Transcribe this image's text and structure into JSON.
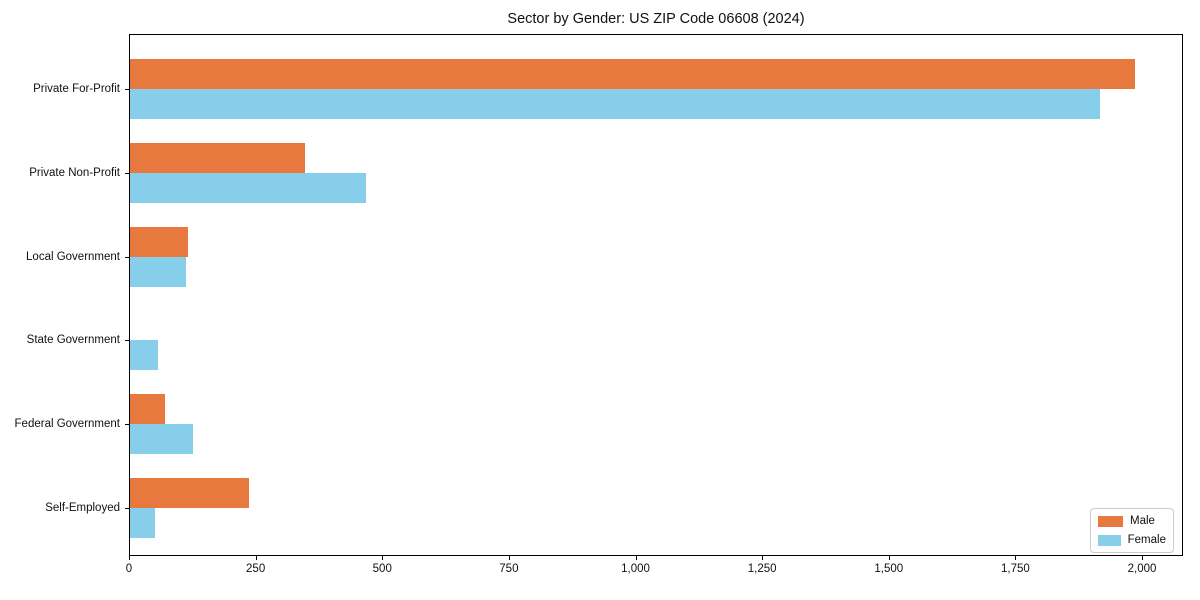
{
  "title": "Sector by Gender: US ZIP Code 06608 (2024)",
  "chart_data": {
    "type": "bar",
    "orientation": "horizontal",
    "title": "Sector by Gender: US ZIP Code 06608 (2024)",
    "categories": [
      "Private For-Profit",
      "Private Non-Profit",
      "Local Government",
      "State Government",
      "Federal Government",
      "Self-Employed"
    ],
    "series": [
      {
        "name": "Male",
        "color": "#e8793e",
        "values": [
          1985,
          345,
          115,
          0,
          70,
          235
        ]
      },
      {
        "name": "Female",
        "color": "#87ceeb",
        "values": [
          1915,
          465,
          110,
          55,
          125,
          50
        ]
      }
    ],
    "xlabel": "",
    "ylabel": "",
    "xlim": [
      0,
      2082
    ],
    "x_ticks": [
      0,
      250,
      500,
      750,
      1000,
      1250,
      1500,
      1750,
      2000
    ],
    "x_tick_labels": [
      "0",
      "250",
      "500",
      "750",
      "1,000",
      "1,250",
      "1,500",
      "1,750",
      "2,000"
    ],
    "grid": false,
    "legend_position": "lower right"
  },
  "legend": {
    "items": [
      {
        "label": "Male",
        "color": "#e8793e"
      },
      {
        "label": "Female",
        "color": "#87ceeb"
      }
    ]
  }
}
